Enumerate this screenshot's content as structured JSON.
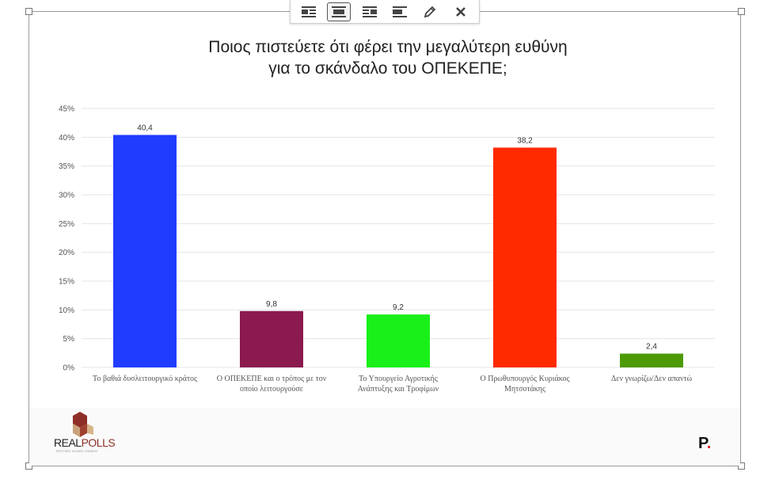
{
  "toolbar": {
    "buttons": [
      {
        "name": "align-left-icon",
        "active": false
      },
      {
        "name": "align-center-icon",
        "active": true
      },
      {
        "name": "align-right-icon",
        "active": false
      },
      {
        "name": "align-none-icon",
        "active": false
      },
      {
        "name": "pencil-edit-icon",
        "active": false
      },
      {
        "name": "close-icon",
        "active": false
      }
    ]
  },
  "title_line1": "Ποιος πιστεύετε ότι φέρει την μεγαλύτερη ευθύνη",
  "title_line2": "για το σκάνδαλο του ΟΠΕΚΕΠΕ;",
  "logo": {
    "prefix": "REAL",
    "accent": "POLLS",
    "tagline": "ΕΡΕΥΝΕΣ ΚΟΙΝΗΣ ΓΝΩΜΗΣ"
  },
  "brand_mark": {
    "letter": "P",
    "dot": "."
  },
  "chart_data": {
    "type": "bar",
    "title": "Ποιος πιστεύετε ότι φέρει την μεγαλύτερη ευθύνη για το σκάνδαλο του ΟΠΕΚΕΠΕ;",
    "categories": [
      [
        "Το βαθιά δυσλειτουργικό κράτος"
      ],
      [
        "Ο ΟΠΕΚΕΠΕ και ο τρόπος με τον",
        "οποίο λειτουργούσε"
      ],
      [
        "Το Υπουργείο Αγροτικής",
        "Ανάπτυξης και Τροφίμων"
      ],
      [
        "Ο Πρωθυπουργός Κυριάκος",
        "Μητσοτάκης"
      ],
      [
        "Δεν γνωρίζω/Δεν απαντώ"
      ]
    ],
    "values": [
      40.4,
      9.8,
      9.2,
      38.2,
      2.4
    ],
    "value_labels": [
      "40,4",
      "9,8",
      "9,2",
      "38,2",
      "2,4"
    ],
    "colors": [
      "#1f3cff",
      "#8b1a4e",
      "#19f019",
      "#ff2a00",
      "#4e9a06"
    ],
    "yticks": [
      "0%",
      "5%",
      "10%",
      "15%",
      "20%",
      "25%",
      "30%",
      "35%",
      "40%",
      "45%"
    ],
    "ylim": [
      0,
      45
    ],
    "grid": true,
    "legend": "none"
  }
}
